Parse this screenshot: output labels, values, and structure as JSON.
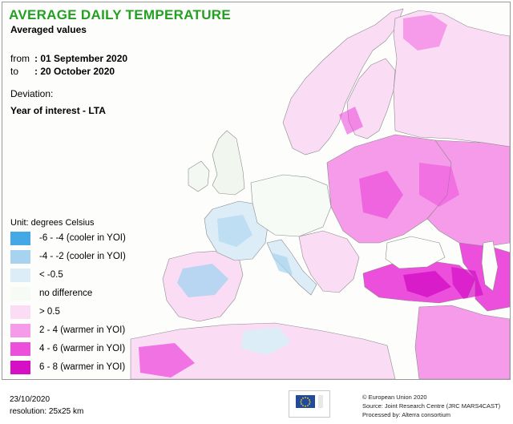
{
  "map": {
    "title": "AVERAGE DAILY TEMPERATURE",
    "subtitle": "Averaged values",
    "period": {
      "from_label": "from",
      "from_value": ": 01 September 2020",
      "to_label": "to",
      "to_value": ": 20 October 2020"
    },
    "deviation_label": "Deviation:",
    "deviation_value": "Year of interest - LTA"
  },
  "legend": {
    "unit": "Unit: degrees Celsius",
    "items": [
      {
        "label": "-6 - -4 (cooler in YOI)",
        "color": "#45a8e6"
      },
      {
        "label": "-4 - -2 (cooler in YOI)",
        "color": "#a8d3f0"
      },
      {
        "label": "< -0.5",
        "color": "#dcedf8"
      },
      {
        "label": "no difference",
        "color": "#f7fbf5"
      },
      {
        "label": "> 0.5",
        "color": "#fbdcf5"
      },
      {
        "label": "2 - 4 (warmer in YOI)",
        "color": "#f59bea"
      },
      {
        "label": "4 - 6 (warmer in YOI)",
        "color": "#ec4fdc"
      },
      {
        "label": "6 - 8 (warmer in YOI)",
        "color": "#d40fc4"
      }
    ]
  },
  "footer": {
    "date": "23/10/2020",
    "resolution": "resolution: 25x25 km",
    "credit_1": "© European Union 2020",
    "credit_2": "Source: Joint Research Centre (JRC MARS4CAST)",
    "credit_3": "Processed by: Alterra consortium"
  },
  "colors": {
    "title_green": "#23a021",
    "sea": "#fdfefc",
    "border_line": "#7a7a7a"
  }
}
